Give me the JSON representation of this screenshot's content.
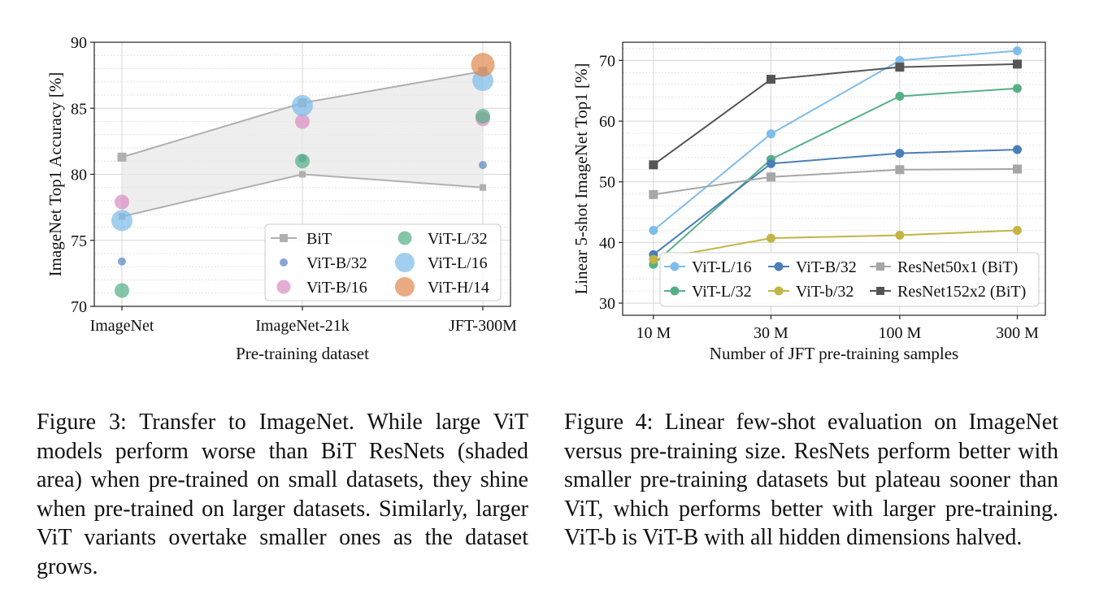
{
  "chart_data": [
    {
      "type": "scatter",
      "xlabel": "Pre-training dataset",
      "ylabel": "ImageNet Top1 Accuracy [%]",
      "categories": [
        "ImageNet",
        "ImageNet-21k",
        "JFT-300M"
      ],
      "ylim": [
        70,
        90
      ],
      "yticks": [
        70,
        75,
        80,
        85,
        90
      ],
      "grid": true,
      "legend_position": "bottom-right",
      "shaded_band": {
        "lower_series": "BiT (lower)",
        "upper_series": "BiT (upper)",
        "color": "#e8e8e8"
      },
      "bit_upper": [
        81.3,
        85.4,
        87.8
      ],
      "bit_lower": [
        76.8,
        80.0,
        79.0
      ],
      "series": [
        {
          "name": "BiT",
          "marker": "square",
          "color": "#b0b0b0"
        },
        {
          "name": "ViT-B/32",
          "marker": "circle",
          "size": 1,
          "color": "#5a87c0",
          "values": [
            73.4,
            81.2,
            80.7
          ]
        },
        {
          "name": "ViT-B/16",
          "marker": "circle",
          "size": 2,
          "color": "#d98fc3",
          "values": [
            77.9,
            84.0,
            84.2
          ]
        },
        {
          "name": "ViT-L/32",
          "marker": "circle",
          "size": 2,
          "color": "#56b087",
          "values": [
            71.2,
            81.0,
            84.4
          ]
        },
        {
          "name": "ViT-L/16",
          "marker": "circle",
          "size": 3,
          "color": "#7ebde9",
          "values": [
            76.5,
            85.2,
            87.1
          ]
        },
        {
          "name": "ViT-H/14",
          "marker": "circle",
          "size": 3.2,
          "color": "#e08b51",
          "values": [
            null,
            null,
            88.3
          ]
        }
      ]
    },
    {
      "type": "line",
      "xlabel": "Number of JFT pre-training samples",
      "ylabel": "Linear 5-shot ImageNet Top1 [%]",
      "x": [
        10,
        30,
        100,
        300
      ],
      "x_unit": "M",
      "xticks": [
        "10 M",
        "30 M",
        "100 M",
        "300 M"
      ],
      "x_scale": "log",
      "ylim": [
        28,
        73
      ],
      "yticks": [
        30,
        40,
        50,
        60,
        70
      ],
      "grid": true,
      "legend_position": "bottom-right",
      "series": [
        {
          "name": "ViT-L/16",
          "marker": "circle",
          "color": "#7ebde9",
          "values": [
            42.0,
            57.9,
            70.0,
            71.6
          ]
        },
        {
          "name": "ViT-L/32",
          "marker": "circle",
          "color": "#56b087",
          "values": [
            36.4,
            53.7,
            64.1,
            65.4
          ]
        },
        {
          "name": "ViT-B/32",
          "marker": "circle",
          "color": "#4a7fb8",
          "values": [
            38.0,
            53.0,
            54.7,
            55.3
          ]
        },
        {
          "name": "ViT-b/32",
          "marker": "circle",
          "color": "#c2b545",
          "values": [
            37.2,
            40.7,
            41.2,
            42.0
          ]
        },
        {
          "name": "ResNet50x1 (BiT)",
          "marker": "square",
          "color": "#a6a6a6",
          "values": [
            47.9,
            50.8,
            52.0,
            52.1
          ]
        },
        {
          "name": "ResNet152x2 (BiT)",
          "marker": "square",
          "color": "#555555",
          "values": [
            52.8,
            66.9,
            68.9,
            69.4
          ]
        }
      ]
    }
  ],
  "captions": {
    "fig3": "Figure 3: Transfer to ImageNet. While large ViT models perform worse than BiT ResNets (shaded area) when pre-trained on small datasets, they shine when pre-trained on larger datasets. Similarly, larger ViT variants overtake smaller ones as the dataset grows.",
    "fig4": "Figure 4: Linear few-shot evaluation on ImageNet versus pre-training size. ResNets perform better with smaller pre-training datasets but plateau sooner than ViT, which performs better with larger pre-training. ViT-b is ViT-B with all hidden dimensions halved."
  }
}
